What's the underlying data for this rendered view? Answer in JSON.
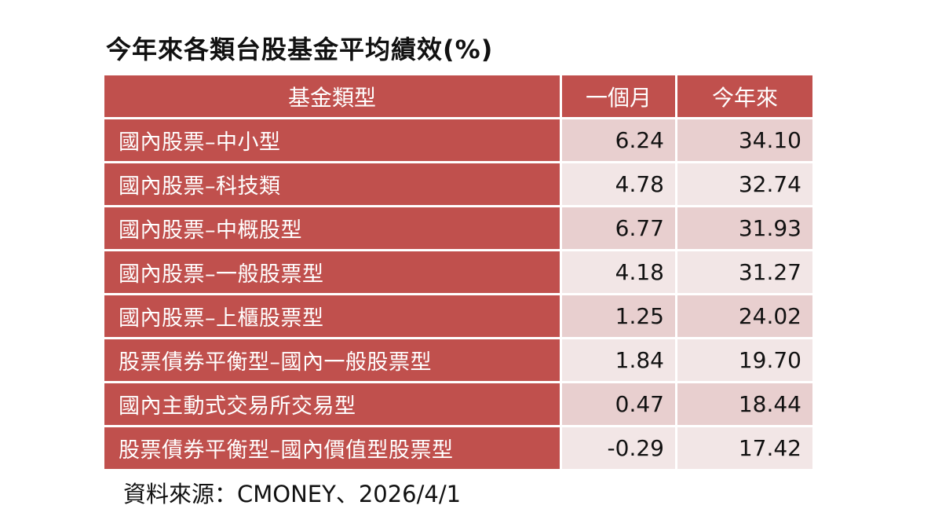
{
  "chart_data": {
    "type": "table",
    "title": "今年來各類台股基金平均績效(%)",
    "columns": [
      "基金類型",
      "一個月",
      "今年來"
    ],
    "rows": [
      {
        "name": "國內股票–中小型",
        "one_month": "6.24",
        "ytd": "34.10"
      },
      {
        "name": "國內股票–科技類",
        "one_month": "4.78",
        "ytd": "32.74"
      },
      {
        "name": "國內股票–中概股型",
        "one_month": "6.77",
        "ytd": "31.93"
      },
      {
        "name": "國內股票–一般股票型",
        "one_month": "4.18",
        "ytd": "31.27"
      },
      {
        "name": "國內股票–上櫃股票型",
        "one_month": "1.25",
        "ytd": "24.02"
      },
      {
        "name": "股票債券平衡型–國內一般股票型",
        "one_month": "1.84",
        "ytd": "19.70"
      },
      {
        "name": "國內主動式交易所交易型",
        "one_month": "0.47",
        "ytd": "18.44"
      },
      {
        "name": "股票債券平衡型–國內價值型股票型",
        "one_month": "-0.29",
        "ytd": "17.42"
      }
    ],
    "source": "資料來源：CMONEY、2026/4/1"
  },
  "colors": {
    "header_bg": "#c0504d",
    "odd_row_bg": "#e8cfcf",
    "even_row_bg": "#f2e6e6"
  }
}
